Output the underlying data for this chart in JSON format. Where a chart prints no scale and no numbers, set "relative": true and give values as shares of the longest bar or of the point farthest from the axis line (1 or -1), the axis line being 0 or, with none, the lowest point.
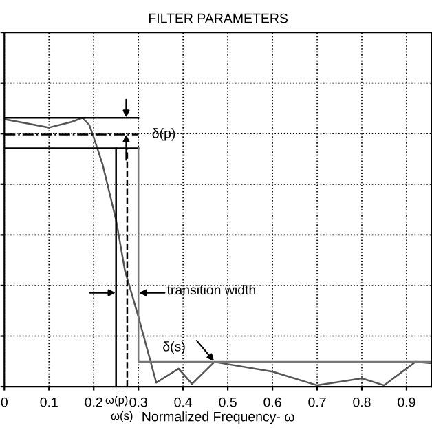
{
  "chart_data": {
    "type": "line",
    "title": "FILTER PARAMETERS",
    "xlabel": "Normalized Frequency- ω",
    "relative": true,
    "xlim": [
      0,
      0.957
    ],
    "xticks": [
      0,
      0.1,
      0.2,
      0.3,
      0.4,
      0.5,
      0.6,
      0.7,
      0.8,
      0.9
    ],
    "grid": true,
    "legend": false,
    "marker": "none",
    "series": [
      {
        "color": "#555555",
        "line_style": "solid",
        "x": [
          0,
          0.05,
          0.1,
          0.15,
          0.175,
          0.19,
          0.2,
          0.22,
          0.235,
          0.25,
          0.27,
          0.3,
          0.34,
          0.39,
          0.42,
          0.47,
          0.6,
          0.7,
          0.8,
          0.85,
          0.92,
          0.957
        ],
        "values": [
          0.995,
          0.98,
          0.964,
          0.985,
          1.0,
          0.974,
          0.928,
          0.826,
          0.723,
          0.62,
          0.431,
          0.26,
          0.015,
          0.067,
          0.01,
          0.092,
          0.056,
          0.005,
          0.031,
          0.005,
          0.092,
          0.087
        ]
      },
      {
        "color": "#000000",
        "line_style": "solid",
        "x": [
          0,
          0.3
        ],
        "values": [
          1.0,
          1.0
        ]
      },
      {
        "color": "#000000",
        "line_style": "dashdot",
        "x": [
          0,
          0.3
        ],
        "values": [
          0.938,
          0.938
        ]
      },
      {
        "color": "#000000",
        "line_style": "solid",
        "x": [
          0,
          0.3
        ],
        "values": [
          0.887,
          0.887
        ]
      },
      {
        "color": "#000000",
        "line_style": "solid",
        "x": [
          0.25,
          0.25
        ],
        "values": [
          0,
          0.887
        ]
      },
      {
        "color": "#000000",
        "line_style": "dashed",
        "x": [
          0.275,
          0.275
        ],
        "values": [
          0,
          0.887
        ]
      },
      {
        "color": "#777777",
        "line_style": "solid",
        "x": [
          0.3,
          0.3,
          0.957
        ],
        "values": [
          0.887,
          0.092,
          0.092
        ]
      }
    ],
    "annotations": [
      "δ(p)",
      "transition width",
      "δ(s)",
      "ω(p)",
      "ω(s)"
    ]
  }
}
